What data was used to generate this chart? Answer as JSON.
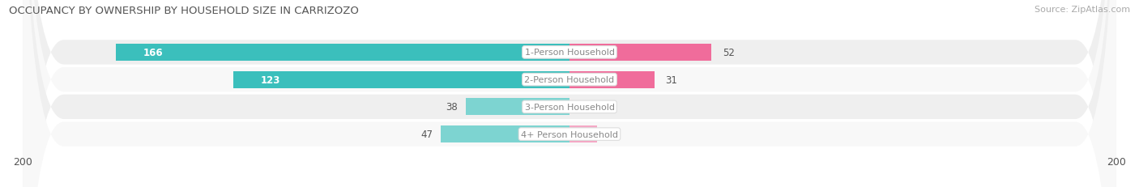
{
  "title": "OCCUPANCY BY OWNERSHIP BY HOUSEHOLD SIZE IN CARRIZOZO",
  "source": "Source: ZipAtlas.com",
  "categories": [
    "1-Person Household",
    "2-Person Household",
    "3-Person Household",
    "4+ Person Household"
  ],
  "owner_values": [
    166,
    123,
    38,
    47
  ],
  "renter_values": [
    52,
    31,
    0,
    10
  ],
  "owner_color_large": "#3BBFBC",
  "owner_color_small": "#7DD4D1",
  "renter_color_large": "#F06C9B",
  "renter_color_small": "#F4A8C5",
  "label_color_dark": "#555555",
  "label_color_white": "#ffffff",
  "axis_max": 200,
  "bar_height": 0.62,
  "row_bg_even": "#efefef",
  "row_bg_odd": "#f8f8f8",
  "title_fontsize": 9.5,
  "bar_label_fontsize": 8.5,
  "axis_label_fontsize": 9,
  "legend_fontsize": 9,
  "source_fontsize": 8,
  "center_label_color": "#888888",
  "owner_threshold": 60
}
